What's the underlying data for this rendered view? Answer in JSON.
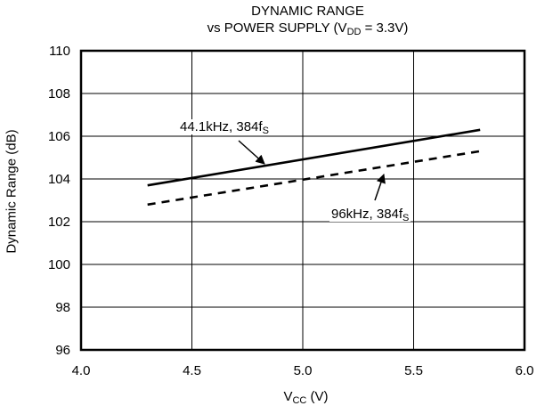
{
  "chart_data": {
    "type": "line",
    "title": "DYNAMIC RANGE",
    "subtitle_prefix": "vs POWER SUPPLY (V",
    "subtitle_sub": "DD",
    "subtitle_suffix": " = 3.3V)",
    "xlabel_main": "V",
    "xlabel_sub": "CC",
    "xlabel_suffix": " (V)",
    "ylabel": "Dynamic Range (dB)",
    "xlim": [
      4.0,
      6.0
    ],
    "ylim": [
      96,
      110
    ],
    "xticks": [
      "4.0",
      "4.5",
      "5.0",
      "5.5",
      "6.0"
    ],
    "yticks": [
      "96",
      "98",
      "100",
      "102",
      "104",
      "106",
      "108",
      "110"
    ],
    "grid": true,
    "series": [
      {
        "name": "44.1kHz, 384fS",
        "style": "solid",
        "x": [
          4.3,
          5.8
        ],
        "y": [
          103.7,
          106.3
        ]
      },
      {
        "name": "96kHz, 384fS",
        "style": "dashed",
        "x": [
          4.3,
          5.8
        ],
        "y": [
          102.8,
          105.3
        ]
      }
    ],
    "annotations": [
      {
        "text": "44.1kHz, 384f",
        "sub": "S"
      },
      {
        "text": "96kHz, 384f",
        "sub": "S"
      }
    ]
  }
}
